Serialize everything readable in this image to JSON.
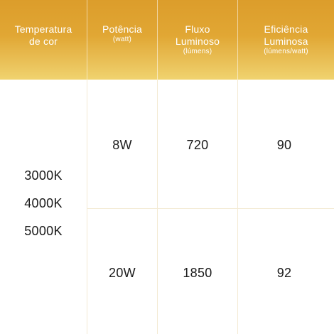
{
  "header": {
    "color_temperature": {
      "title": "Temperatura de cor"
    },
    "power": {
      "title": "Potência",
      "unit": "(watt)"
    },
    "luminous_flux": {
      "title": "Fluxo Luminoso",
      "unit": "(lúmens)"
    },
    "luminous_efficiency": {
      "title": "Eficiência Luminosa",
      "unit": "(lúmens/watt)"
    }
  },
  "color_temperatures": [
    "3000K",
    "4000K",
    "5000K"
  ],
  "rows": [
    {
      "power": "8W",
      "flux": "720",
      "efficiency": "90"
    },
    {
      "power": "20W",
      "flux": "1850",
      "efficiency": "92"
    }
  ],
  "colors": {
    "header_gradient_top": "#dc9d2b",
    "header_gradient_bottom": "#f0d36f",
    "grid_line": "#f3ead3",
    "text": "#1a1a1a"
  }
}
